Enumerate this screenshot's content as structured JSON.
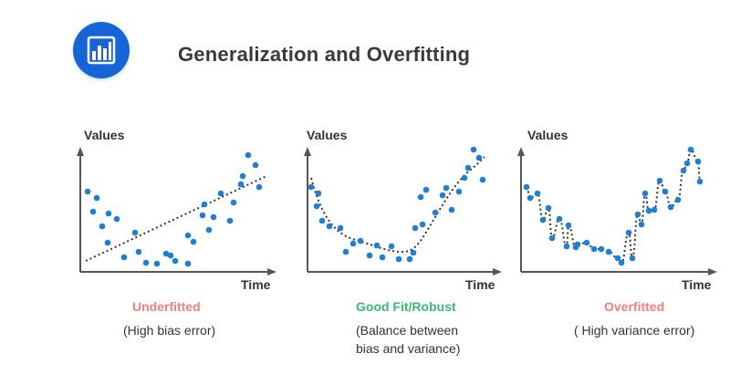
{
  "header": {
    "title": "Generalization and Overfitting",
    "logo_icon": "bar-chart-icon",
    "accent_color": "#1565d8"
  },
  "panels": [
    {
      "y_axis_label": "Values",
      "x_axis_label": "Time",
      "caption": "Underfitted",
      "caption_color": "#f08080",
      "description_lines": [
        "(High bias error)"
      ],
      "fit_type": "linear"
    },
    {
      "y_axis_label": "Values",
      "x_axis_label": "Time",
      "caption": "Good Fit/Robust",
      "caption_color": "#3cb878",
      "description_lines": [
        "(Balance between",
        "bias and variance)"
      ],
      "fit_type": "smooth-curve"
    },
    {
      "y_axis_label": "Values",
      "x_axis_label": "Time",
      "caption": "Overfitted",
      "caption_color": "#f08080",
      "description_lines": [
        "( High variance error)"
      ],
      "fit_type": "through-every-point"
    }
  ],
  "point_color": "#1f7fd6"
}
